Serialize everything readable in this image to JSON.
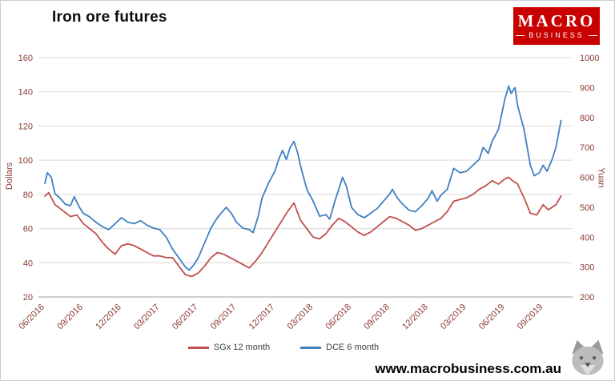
{
  "title": "Iron ore futures",
  "logo": {
    "line1": "MACRO",
    "line2": "BUSINESS"
  },
  "footer": {
    "url": "www.macrobusiness.com.au"
  },
  "legend": [
    {
      "label": "SGx 12 month",
      "color": "#C0504D"
    },
    {
      "label": "DCE 6 month",
      "color": "#3F7FC1"
    }
  ],
  "chart_data": {
    "type": "line",
    "title": "Iron ore futures",
    "grid": true,
    "legend_position": "bottom",
    "x_axis": {
      "unit": "months since 2016-06",
      "tick_positions": [
        0,
        3,
        6,
        9,
        12,
        15,
        18,
        21,
        24,
        27,
        30,
        33,
        36,
        39
      ],
      "tick_labels": [
        "06/2016",
        "09/2016",
        "12/2016",
        "03/2017",
        "06/2017",
        "09/2017",
        "12/2017",
        "03/2018",
        "06/2018",
        "09/2018",
        "12/2018",
        "03/2019",
        "06/2019",
        "09/2019"
      ]
    },
    "y_left": {
      "label": "Dollars",
      "min": 20,
      "max": 160,
      "ticks": [
        20,
        40,
        60,
        80,
        100,
        120,
        140,
        160
      ]
    },
    "y_right": {
      "label": "Yuan",
      "min": 200,
      "max": 1000,
      "ticks": [
        200,
        300,
        400,
        500,
        600,
        700,
        800,
        900,
        1000
      ]
    },
    "series": [
      {
        "name": "SGx 12 month",
        "axis": "left",
        "color": "#C0504D",
        "points": [
          [
            0,
            79
          ],
          [
            0.3,
            81
          ],
          [
            0.8,
            74
          ],
          [
            1.5,
            70
          ],
          [
            2,
            67
          ],
          [
            2.5,
            68
          ],
          [
            3,
            63
          ],
          [
            3.5,
            60
          ],
          [
            4,
            57
          ],
          [
            4.5,
            52
          ],
          [
            5,
            48
          ],
          [
            5.5,
            45
          ],
          [
            6,
            50
          ],
          [
            6.5,
            51
          ],
          [
            7,
            50
          ],
          [
            7.5,
            48
          ],
          [
            8,
            46
          ],
          [
            8.5,
            44
          ],
          [
            9,
            44
          ],
          [
            9.5,
            43
          ],
          [
            10,
            43
          ],
          [
            10.5,
            38
          ],
          [
            11,
            33
          ],
          [
            11.5,
            32
          ],
          [
            12,
            34
          ],
          [
            12.5,
            38
          ],
          [
            13,
            43
          ],
          [
            13.5,
            46
          ],
          [
            14,
            45
          ],
          [
            14.5,
            43
          ],
          [
            15,
            41
          ],
          [
            15.5,
            39
          ],
          [
            16,
            37
          ],
          [
            16.5,
            41
          ],
          [
            17,
            46
          ],
          [
            17.5,
            52
          ],
          [
            18,
            58
          ],
          [
            18.5,
            64
          ],
          [
            19,
            70
          ],
          [
            19.5,
            75
          ],
          [
            20,
            65
          ],
          [
            20.5,
            60
          ],
          [
            21,
            55
          ],
          [
            21.5,
            54
          ],
          [
            22,
            57
          ],
          [
            22.5,
            62
          ],
          [
            23,
            66
          ],
          [
            23.5,
            64
          ],
          [
            24,
            61
          ],
          [
            24.5,
            58
          ],
          [
            25,
            56
          ],
          [
            25.5,
            58
          ],
          [
            26,
            61
          ],
          [
            26.5,
            64
          ],
          [
            27,
            67
          ],
          [
            27.5,
            66
          ],
          [
            28,
            64
          ],
          [
            28.5,
            62
          ],
          [
            29,
            59
          ],
          [
            29.5,
            60
          ],
          [
            30,
            62
          ],
          [
            30.5,
            64
          ],
          [
            31,
            66
          ],
          [
            31.5,
            70
          ],
          [
            32,
            76
          ],
          [
            32.5,
            77
          ],
          [
            33,
            78
          ],
          [
            33.5,
            80
          ],
          [
            34,
            83
          ],
          [
            34.5,
            85
          ],
          [
            35,
            88
          ],
          [
            35.5,
            86
          ],
          [
            36,
            89
          ],
          [
            36.3,
            90
          ],
          [
            36.6,
            88
          ],
          [
            37,
            86
          ],
          [
            37.5,
            78
          ],
          [
            38,
            69
          ],
          [
            38.5,
            68
          ],
          [
            39,
            74
          ],
          [
            39.4,
            71
          ],
          [
            40,
            74
          ],
          [
            40.4,
            79
          ]
        ]
      },
      {
        "name": "DCE 6 month",
        "axis": "right",
        "color": "#3F7FC1",
        "points": [
          [
            0,
            580
          ],
          [
            0.2,
            615
          ],
          [
            0.5,
            600
          ],
          [
            0.8,
            545
          ],
          [
            1.2,
            530
          ],
          [
            1.6,
            510
          ],
          [
            2,
            505
          ],
          [
            2.3,
            535
          ],
          [
            2.7,
            500
          ],
          [
            3,
            480
          ],
          [
            3.5,
            468
          ],
          [
            4,
            450
          ],
          [
            4.5,
            435
          ],
          [
            5,
            425
          ],
          [
            5.5,
            445
          ],
          [
            6,
            465
          ],
          [
            6.5,
            450
          ],
          [
            7,
            445
          ],
          [
            7.5,
            455
          ],
          [
            8,
            440
          ],
          [
            8.5,
            430
          ],
          [
            9,
            425
          ],
          [
            9.5,
            400
          ],
          [
            10,
            360
          ],
          [
            10.5,
            330
          ],
          [
            11,
            300
          ],
          [
            11.3,
            290
          ],
          [
            11.7,
            310
          ],
          [
            12,
            330
          ],
          [
            12.3,
            360
          ],
          [
            12.7,
            400
          ],
          [
            13,
            430
          ],
          [
            13.5,
            465
          ],
          [
            14,
            490
          ],
          [
            14.2,
            500
          ],
          [
            14.6,
            480
          ],
          [
            15,
            450
          ],
          [
            15.5,
            430
          ],
          [
            16,
            425
          ],
          [
            16.3,
            415
          ],
          [
            16.7,
            470
          ],
          [
            17,
            530
          ],
          [
            17.5,
            580
          ],
          [
            18,
            620
          ],
          [
            18.3,
            660
          ],
          [
            18.6,
            690
          ],
          [
            18.9,
            660
          ],
          [
            19.2,
            700
          ],
          [
            19.5,
            720
          ],
          [
            19.8,
            680
          ],
          [
            20,
            640
          ],
          [
            20.5,
            560
          ],
          [
            21,
            520
          ],
          [
            21.5,
            470
          ],
          [
            22,
            475
          ],
          [
            22.3,
            460
          ],
          [
            22.7,
            520
          ],
          [
            23,
            560
          ],
          [
            23.3,
            600
          ],
          [
            23.6,
            570
          ],
          [
            24,
            500
          ],
          [
            24.5,
            475
          ],
          [
            25,
            465
          ],
          [
            25.5,
            480
          ],
          [
            26,
            495
          ],
          [
            26.5,
            520
          ],
          [
            27,
            545
          ],
          [
            27.2,
            560
          ],
          [
            27.6,
            530
          ],
          [
            28,
            510
          ],
          [
            28.5,
            490
          ],
          [
            29,
            485
          ],
          [
            29.5,
            505
          ],
          [
            30,
            530
          ],
          [
            30.3,
            555
          ],
          [
            30.7,
            520
          ],
          [
            31,
            540
          ],
          [
            31.5,
            560
          ],
          [
            32,
            630
          ],
          [
            32.5,
            615
          ],
          [
            33,
            620
          ],
          [
            33.5,
            640
          ],
          [
            34,
            660
          ],
          [
            34.3,
            700
          ],
          [
            34.7,
            680
          ],
          [
            35,
            720
          ],
          [
            35.5,
            760
          ],
          [
            36,
            860
          ],
          [
            36.3,
            905
          ],
          [
            36.5,
            880
          ],
          [
            36.8,
            900
          ],
          [
            37,
            840
          ],
          [
            37.5,
            760
          ],
          [
            38,
            640
          ],
          [
            38.3,
            605
          ],
          [
            38.7,
            615
          ],
          [
            39,
            640
          ],
          [
            39.3,
            620
          ],
          [
            39.7,
            660
          ],
          [
            40,
            700
          ],
          [
            40.4,
            790
          ]
        ]
      }
    ]
  }
}
